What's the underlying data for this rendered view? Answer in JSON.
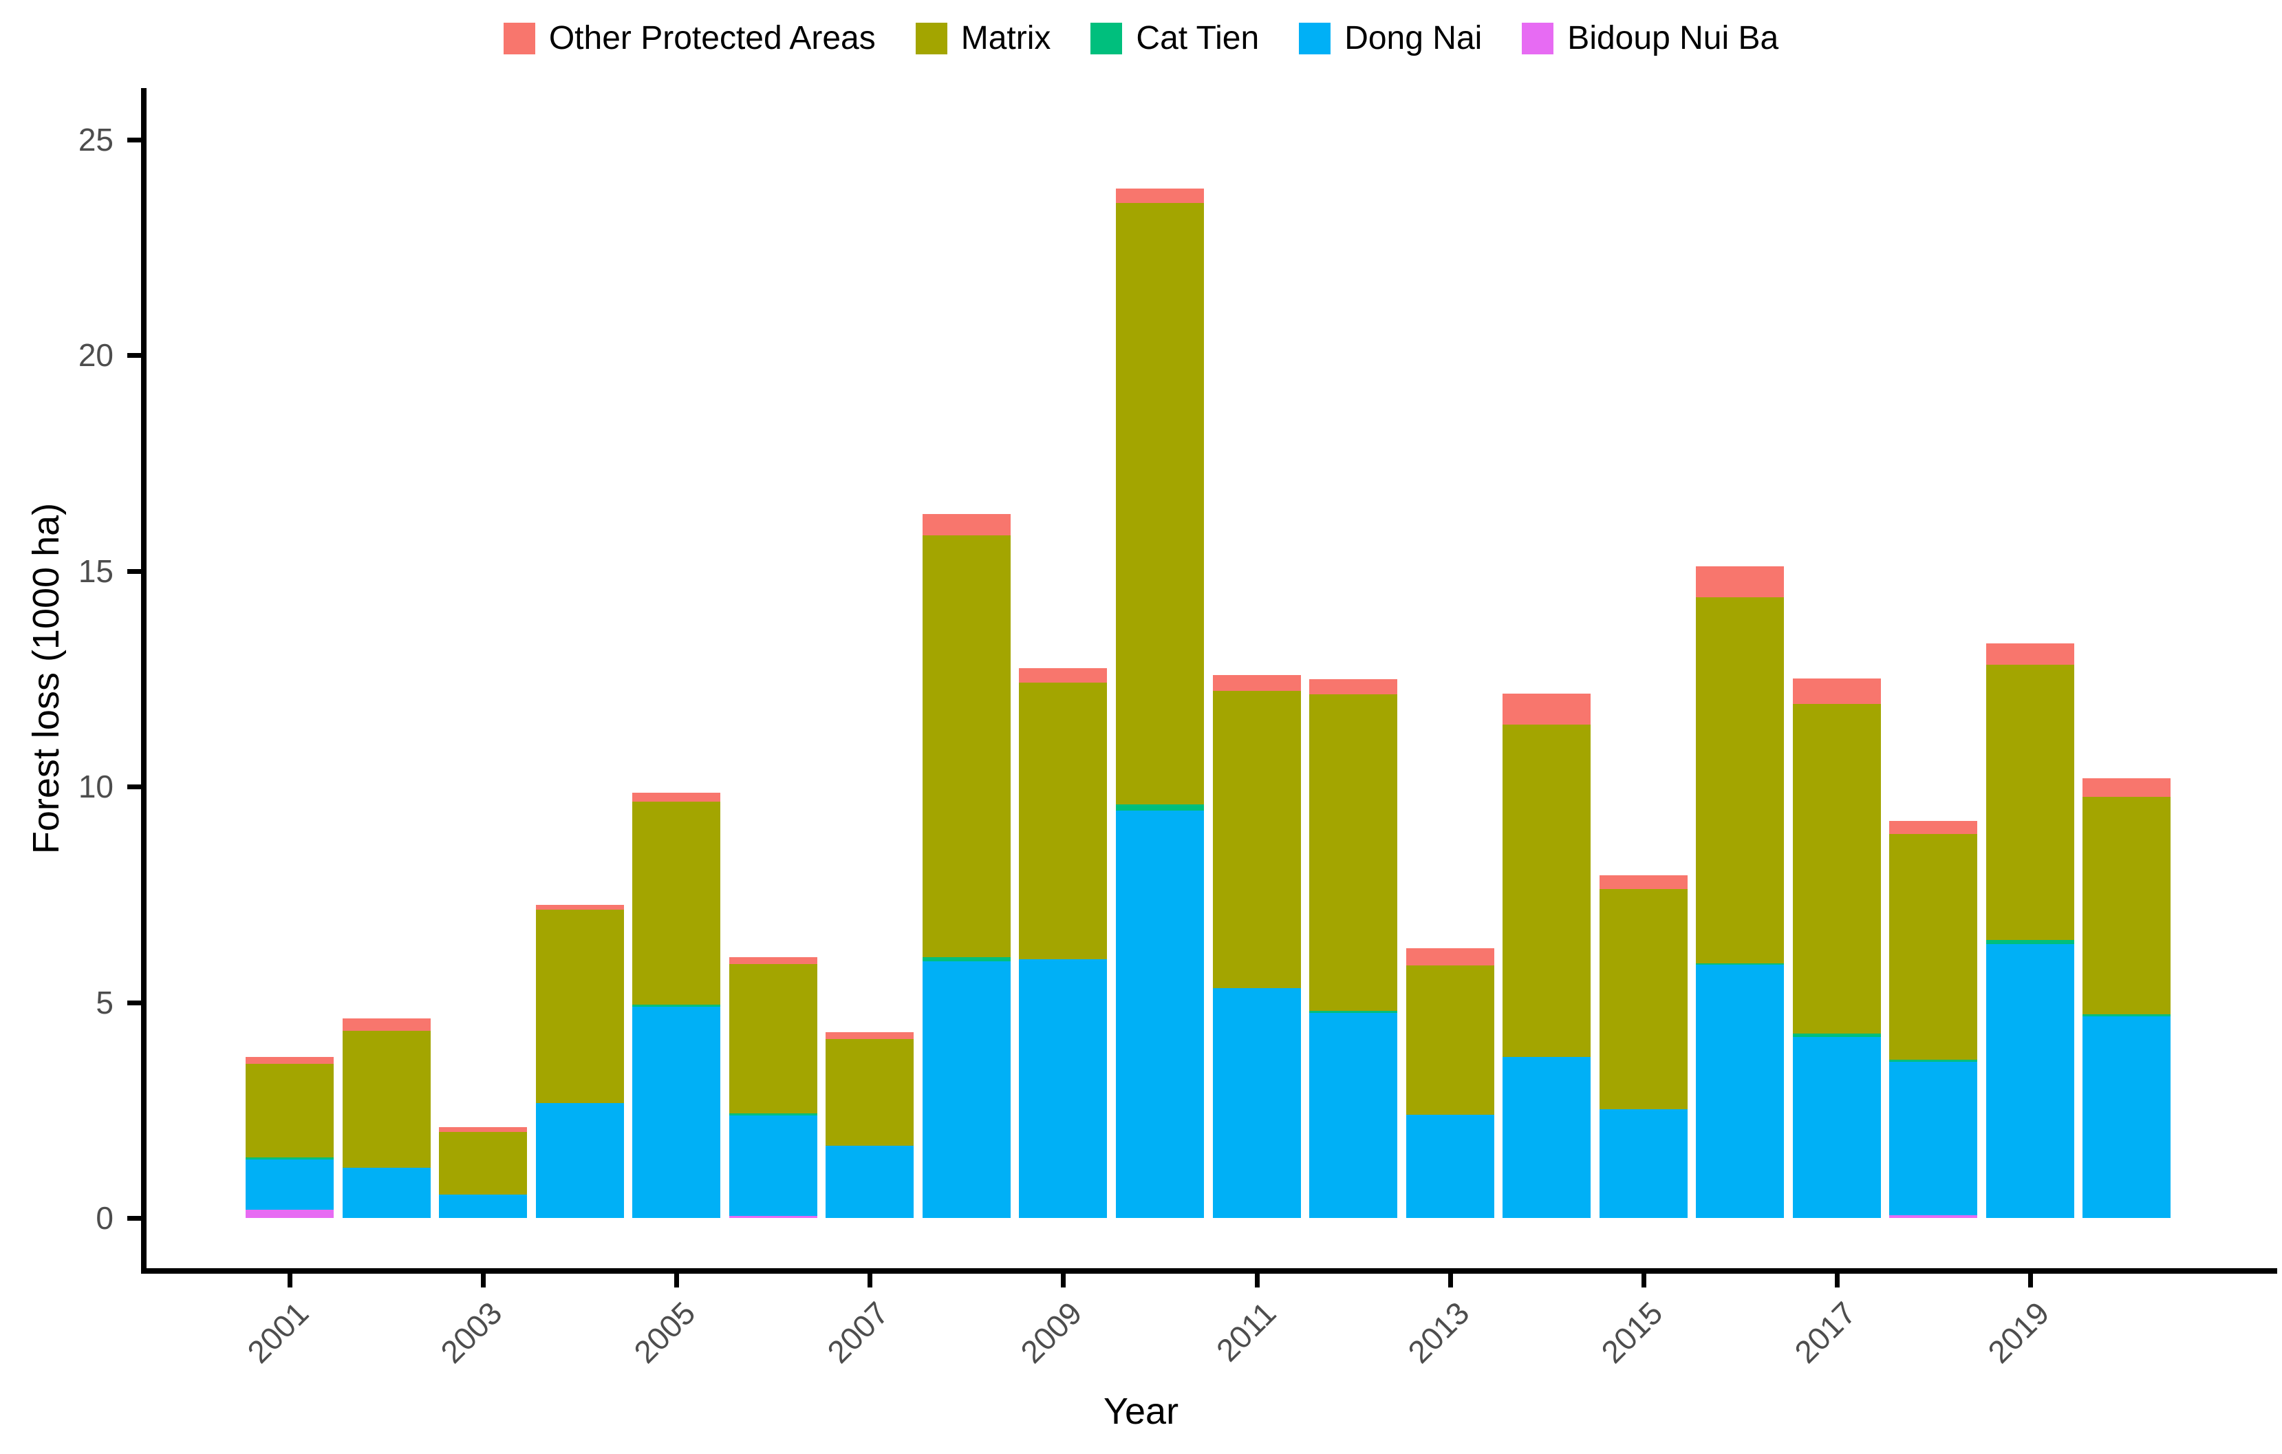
{
  "legend": {
    "items": [
      {
        "label": "Other Protected Areas",
        "color": "#F8766D"
      },
      {
        "label": "Matrix",
        "color": "#A3A500"
      },
      {
        "label": "Cat Tien",
        "color": "#00BF7D"
      },
      {
        "label": "Dong Nai",
        "color": "#00B0F6"
      },
      {
        "label": "Bidoup Nui Ba",
        "color": "#E76BF3"
      }
    ]
  },
  "axes": {
    "y_title": "Forest loss (1000 ha)",
    "x_title": "Year",
    "y_ticks": [
      0,
      5,
      10,
      15,
      20,
      25
    ],
    "x_tick_labels": [
      "2001",
      "2003",
      "2005",
      "2007",
      "2009",
      "2011",
      "2013",
      "2015",
      "2017",
      "2019"
    ]
  },
  "chart_data": {
    "type": "bar",
    "subtype": "stacked",
    "title": "",
    "xlabel": "Year",
    "ylabel": "Forest loss (1000 ha)",
    "ylim": [
      0,
      25
    ],
    "yticks": [
      0,
      5,
      10,
      15,
      20,
      25
    ],
    "grid": false,
    "legend_position": "top-center",
    "categories": [
      2001,
      2002,
      2003,
      2004,
      2005,
      2006,
      2007,
      2008,
      2009,
      2010,
      2011,
      2012,
      2013,
      2014,
      2015,
      2016,
      2017,
      2018,
      2019,
      2020
    ],
    "stack_order_bottom_to_top": [
      "Bidoup Nui Ba",
      "Dong Nai",
      "Cat Tien",
      "Matrix",
      "Other Protected Areas"
    ],
    "series": [
      {
        "name": "Bidoup Nui Ba",
        "color": "#E76BF3",
        "values": [
          0.19,
          0,
          0,
          0,
          0,
          0.04,
          0,
          0,
          0,
          0,
          0,
          0,
          0,
          0,
          0,
          0,
          0,
          0.07,
          0,
          0
        ]
      },
      {
        "name": "Dong Nai",
        "color": "#00B0F6",
        "values": [
          1.16,
          1.17,
          0.55,
          2.66,
          4.9,
          2.33,
          1.67,
          5.95,
          6.0,
          9.44,
          5.33,
          4.75,
          2.4,
          3.74,
          2.52,
          5.87,
          4.2,
          3.55,
          6.35,
          4.68
        ]
      },
      {
        "name": "Cat Tien",
        "color": "#00BF7D",
        "values": [
          0.06,
          0,
          0,
          0,
          0.05,
          0.06,
          0,
          0.1,
          0,
          0.15,
          0,
          0.06,
          0,
          0,
          0,
          0.03,
          0.07,
          0.05,
          0.1,
          0.04
        ]
      },
      {
        "name": "Matrix",
        "color": "#A3A500",
        "values": [
          2.16,
          3.17,
          1.45,
          4.49,
          4.7,
          3.46,
          2.48,
          9.78,
          6.42,
          13.94,
          6.89,
          7.33,
          3.45,
          7.7,
          5.1,
          8.49,
          7.64,
          5.23,
          6.38,
          5.04
        ]
      },
      {
        "name": "Other Protected Areas",
        "color": "#F8766D",
        "values": [
          0.16,
          0.29,
          0.1,
          0.11,
          0.21,
          0.16,
          0.16,
          0.49,
          0.32,
          0.34,
          0.37,
          0.36,
          0.4,
          0.71,
          0.33,
          0.72,
          0.6,
          0.3,
          0.49,
          0.43
        ]
      }
    ],
    "totals": [
      3.73,
      4.63,
      2.1,
      7.26,
      9.86,
      6.05,
      4.31,
      16.32,
      12.74,
      23.87,
      12.59,
      12.5,
      6.25,
      12.15,
      7.95,
      15.11,
      12.51,
      9.2,
      13.32,
      10.19
    ]
  }
}
